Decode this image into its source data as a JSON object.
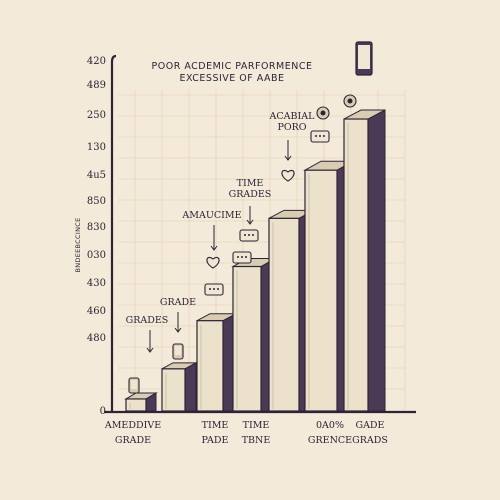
{
  "chart_data": {
    "type": "bar",
    "title": "POOR ACDEMIC PARFORMENCE",
    "subtitle": "EXCESSIVE OF AABE",
    "ylabel": "BNDEEBCCINCE",
    "y_ticks": [
      "420",
      "489",
      "250",
      "130",
      "4u5",
      "850",
      "830",
      "030",
      "430",
      "460",
      "480",
      "0"
    ],
    "categories": [
      "b1",
      "b2",
      "b3",
      "b4",
      "b5",
      "b6",
      "b7"
    ],
    "values": [
      4,
      14,
      30,
      48,
      64,
      80,
      97
    ],
    "ylim": [
      0,
      100
    ],
    "x_labels": [
      {
        "line1": "AMEDDIVE",
        "line2": "GRADE"
      },
      {
        "line1": "TIME",
        "line2": "PADE"
      },
      {
        "line1": "TIME",
        "line2": "TBNE"
      },
      {
        "line1": "0A0%",
        "line2": "GRENCE"
      },
      {
        "line1": "GADE",
        "line2": "GRADS"
      }
    ],
    "annotations": [
      {
        "line1": "GRADES",
        "line2": ""
      },
      {
        "line1": "GRADE",
        "line2": ""
      },
      {
        "line1": "AMAUCIME",
        "line2": ""
      },
      {
        "line1": "TIME",
        "line2": "GRADES"
      },
      {
        "line1": "ACABIAL",
        "line2": "PORO"
      }
    ],
    "icons": [
      "phone-icon",
      "chat-bubble-icon",
      "heart-chat-icon",
      "envelope-icon",
      "smartphone-icon"
    ],
    "colors": {
      "background": "#f3ead9",
      "bar_front": "#ece2cc",
      "bar_side": "#4a3a56",
      "bar_top": "#d9ccb2",
      "ink": "#2e2436",
      "grid": "#e8c9b2"
    }
  }
}
